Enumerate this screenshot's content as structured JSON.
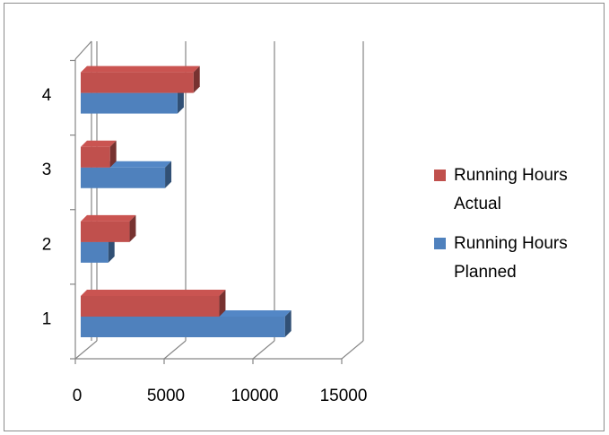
{
  "chart_data": {
    "type": "bar",
    "orientation": "horizontal",
    "style": "3d-clustered",
    "categories": [
      "1",
      "2",
      "3",
      "4"
    ],
    "series": [
      {
        "name": "Running Hours Planned",
        "color": "#4f81bd",
        "values": [
          11500,
          1550,
          4750,
          5450
        ]
      },
      {
        "name": "Running Hours Actual",
        "color": "#c0504d",
        "values": [
          7800,
          2750,
          1650,
          6350
        ]
      }
    ],
    "xlim": [
      0,
      15000
    ],
    "xticks": [
      "0",
      "5000",
      "10000",
      "15000"
    ],
    "grid": true,
    "legend_position": "right"
  }
}
